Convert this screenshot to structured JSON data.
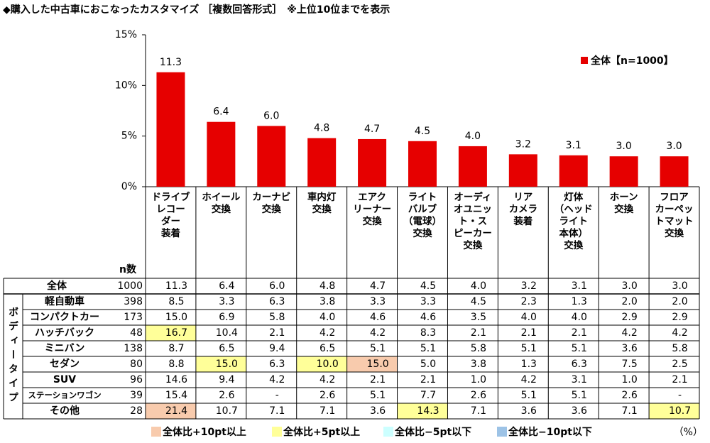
{
  "title": "◆購入した中古車におこなったカスタマイズ ［複数回答形式］　※上位10位までを表示",
  "chart_data": {
    "type": "bar",
    "categories": [
      "ドライブ\nレコー\nダー\n装着",
      "ホイール\n交換",
      "カーナビ\n交換",
      "車内灯\n交換",
      "エアク\nリーナー\n交換",
      "ライト\nバルブ\n（電球）\n交換",
      "オーディ\nオユニッ\nト・ス\nピーカー\n交換",
      "リア\nカメラ\n装着",
      "灯体\n（ヘッド\nライト\n本体）\n交換",
      "ホーン\n交換",
      "フロア\nカーペッ\nトマット\n交換"
    ],
    "series": [
      {
        "name": "全体【n=1000】",
        "color": "#e60000",
        "values": [
          11.3,
          6.4,
          6.0,
          4.8,
          4.7,
          4.5,
          4.0,
          3.2,
          3.1,
          3.0,
          3.0
        ],
        "value_labels": [
          "11.3",
          "6.4",
          "6.0",
          "4.8",
          "4.7",
          "4.5",
          "4.0",
          "3.2",
          "3.1",
          "3.0",
          "3.0"
        ]
      }
    ],
    "ylim": [
      0,
      15
    ],
    "yticks": [
      {
        "value": 0,
        "label": "0%"
      },
      {
        "value": 5,
        "label": "5%"
      },
      {
        "value": 10,
        "label": "10%"
      },
      {
        "value": 15,
        "label": "15%"
      }
    ],
    "legend": "top-right"
  },
  "table": {
    "n_header": "n数",
    "group_label": "ボディータイプ",
    "rows": [
      {
        "label": "全体",
        "n": "1000",
        "cells": [
          "11.3",
          "6.4",
          "6.0",
          "4.8",
          "4.7",
          "4.5",
          "4.0",
          "3.2",
          "3.1",
          "3.0",
          "3.0"
        ]
      },
      {
        "label": "軽自動車",
        "n": "398",
        "cells": [
          "8.5",
          "3.3",
          "6.3",
          "3.8",
          "3.3",
          "3.3",
          "4.5",
          "2.3",
          "1.3",
          "2.0",
          "2.0"
        ]
      },
      {
        "label": "コンパクトカー",
        "n": "173",
        "cells": [
          "15.0",
          "6.9",
          "5.8",
          "4.0",
          "4.6",
          "4.6",
          "3.5",
          "4.0",
          "4.0",
          "2.9",
          "2.9"
        ]
      },
      {
        "label": "ハッチバック",
        "n": "48",
        "cells": [
          "16.7",
          "10.4",
          "2.1",
          "4.2",
          "4.2",
          "8.3",
          "2.1",
          "2.1",
          "2.1",
          "4.2",
          "4.2"
        ],
        "fills": [
          "#ffff99",
          null,
          null,
          null,
          null,
          null,
          null,
          null,
          null,
          null,
          null
        ]
      },
      {
        "label": "ミニバン",
        "n": "138",
        "cells": [
          "8.7",
          "6.5",
          "9.4",
          "6.5",
          "5.1",
          "5.1",
          "5.8",
          "5.1",
          "5.1",
          "3.6",
          "5.8"
        ]
      },
      {
        "label": "セダン",
        "n": "80",
        "cells": [
          "8.8",
          "15.0",
          "6.3",
          "10.0",
          "15.0",
          "5.0",
          "3.8",
          "1.3",
          "6.3",
          "7.5",
          "2.5"
        ],
        "fills": [
          null,
          "#ffff99",
          null,
          "#ffff99",
          "#f8cbad",
          null,
          null,
          null,
          null,
          null,
          null
        ]
      },
      {
        "label": "SUV",
        "n": "96",
        "cells": [
          "14.6",
          "9.4",
          "4.2",
          "4.2",
          "2.1",
          "2.1",
          "1.0",
          "4.2",
          "3.1",
          "1.0",
          "2.1"
        ]
      },
      {
        "label": "ステーションワゴン",
        "n": "39",
        "cells": [
          "15.4",
          "2.6",
          "-",
          "2.6",
          "5.1",
          "7.7",
          "2.6",
          "5.1",
          "5.1",
          "2.6",
          "-"
        ]
      },
      {
        "label": "その他",
        "n": "28",
        "cells": [
          "21.4",
          "10.7",
          "7.1",
          "7.1",
          "3.6",
          "14.3",
          "7.1",
          "3.6",
          "3.6",
          "7.1",
          "10.7"
        ],
        "fills": [
          "#f8cbad",
          null,
          null,
          null,
          null,
          "#ffff99",
          null,
          null,
          null,
          null,
          "#ffff99"
        ]
      }
    ],
    "legend": [
      {
        "label": "全体比+10pt以上",
        "color": "#f8cbad"
      },
      {
        "label": "全体比+5pt以上",
        "color": "#ffff99"
      },
      {
        "label": "全体比−5pt以下",
        "color": "#ccffff"
      },
      {
        "label": "全体比−10pt以下",
        "color": "#9dc3e6"
      }
    ],
    "unit": "（%）"
  }
}
